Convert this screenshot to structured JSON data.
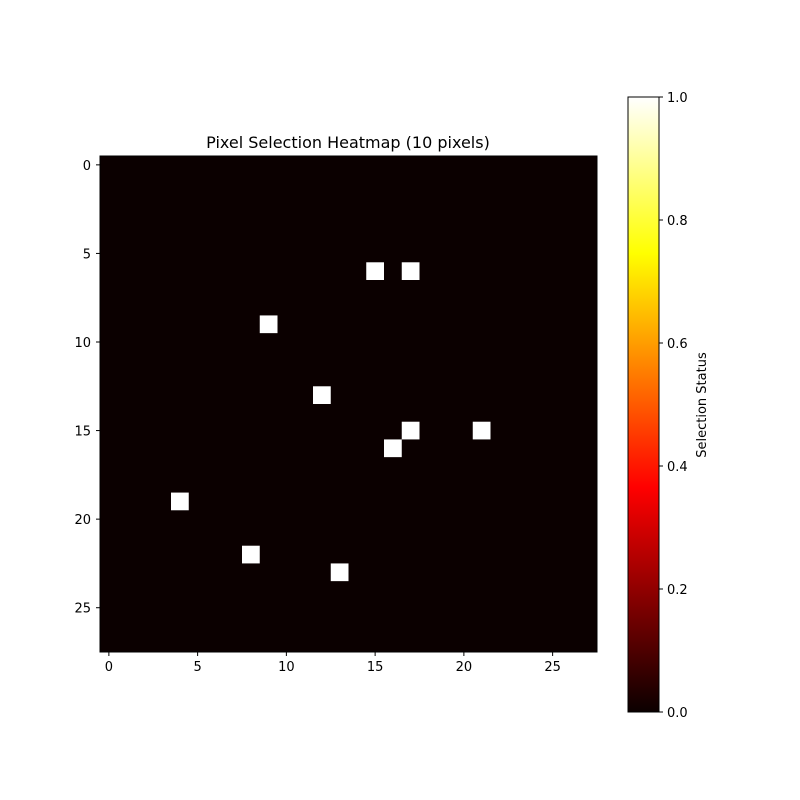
{
  "chart_data": {
    "type": "heatmap",
    "title": "Pixel Selection Heatmap (10 pixels)",
    "grid_size": 28,
    "x_ticks": [
      0,
      5,
      10,
      15,
      20,
      25
    ],
    "y_ticks": [
      0,
      5,
      10,
      15,
      20,
      25
    ],
    "xlim": [
      -0.5,
      27.5
    ],
    "ylim": [
      27.5,
      -0.5
    ],
    "grid": false,
    "background_value": 0,
    "selected_value": 1,
    "selected_pixels": [
      {
        "row": 6,
        "col": 15
      },
      {
        "row": 6,
        "col": 17
      },
      {
        "row": 9,
        "col": 9
      },
      {
        "row": 13,
        "col": 12
      },
      {
        "row": 15,
        "col": 17
      },
      {
        "row": 15,
        "col": 21
      },
      {
        "row": 16,
        "col": 16
      },
      {
        "row": 19,
        "col": 4
      },
      {
        "row": 22,
        "col": 8
      },
      {
        "row": 23,
        "col": 13
      }
    ],
    "colormap": "hot",
    "colorbar": {
      "label": "Selection Status",
      "range": [
        0,
        1
      ],
      "ticks": [
        "0.0",
        "0.2",
        "0.4",
        "0.6",
        "0.8",
        "1.0"
      ],
      "placement": "right"
    }
  }
}
